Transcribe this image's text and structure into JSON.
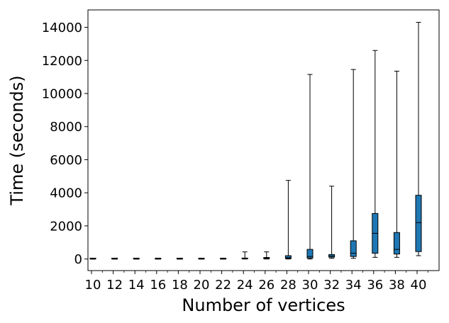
{
  "chart_data": {
    "type": "box",
    "xlabel": "Number of vertices",
    "ylabel": "Time (seconds)",
    "ylim": [
      -700,
      15050
    ],
    "yticks": [
      0,
      2000,
      4000,
      6000,
      8000,
      10000,
      12000,
      14000
    ],
    "categories": [
      "10",
      "12",
      "14",
      "16",
      "18",
      "20",
      "22",
      "24",
      "26",
      "28",
      "30",
      "32",
      "34",
      "36",
      "38",
      "40"
    ],
    "box_color": "#1f77b4",
    "boxes": [
      {
        "category": "10",
        "whisker_low": 0,
        "q1": 0,
        "median": 0,
        "q3": 0,
        "whisker_high": 0
      },
      {
        "category": "12",
        "whisker_low": 0,
        "q1": 0,
        "median": 0,
        "q3": 0,
        "whisker_high": 0
      },
      {
        "category": "14",
        "whisker_low": 0,
        "q1": 0,
        "median": 0,
        "q3": 0,
        "whisker_high": 0
      },
      {
        "category": "16",
        "whisker_low": 0,
        "q1": 0,
        "median": 0,
        "q3": 0,
        "whisker_high": 0
      },
      {
        "category": "18",
        "whisker_low": 0,
        "q1": 0,
        "median": 0,
        "q3": 0,
        "whisker_high": 0
      },
      {
        "category": "20",
        "whisker_low": 0,
        "q1": 0,
        "median": 0,
        "q3": 0,
        "whisker_high": 0
      },
      {
        "category": "22",
        "whisker_low": 0,
        "q1": 0,
        "median": 0,
        "q3": 0,
        "whisker_high": 0
      },
      {
        "category": "24",
        "whisker_low": 0,
        "q1": 5,
        "median": 10,
        "q3": 20,
        "whisker_high": 430
      },
      {
        "category": "26",
        "whisker_low": 0,
        "q1": 20,
        "median": 50,
        "q3": 90,
        "whisker_high": 430
      },
      {
        "category": "28",
        "whisker_low": 0,
        "q1": 30,
        "median": 80,
        "q3": 200,
        "whisker_high": 4750
      },
      {
        "category": "30",
        "whisker_low": 0,
        "q1": 60,
        "median": 150,
        "q3": 580,
        "whisker_high": 11150
      },
      {
        "category": "32",
        "whisker_low": 40,
        "q1": 110,
        "median": 180,
        "q3": 270,
        "whisker_high": 4400
      },
      {
        "category": "34",
        "whisker_low": 40,
        "q1": 150,
        "median": 350,
        "q3": 1100,
        "whisker_high": 11450
      },
      {
        "category": "36",
        "whisker_low": 100,
        "q1": 350,
        "median": 1550,
        "q3": 2750,
        "whisker_high": 12600
      },
      {
        "category": "38",
        "whisker_low": 100,
        "q1": 300,
        "median": 580,
        "q3": 1600,
        "whisker_high": 11350
      },
      {
        "category": "40",
        "whisker_low": 200,
        "q1": 450,
        "median": 2200,
        "q3": 3850,
        "whisker_high": 14300
      }
    ]
  }
}
